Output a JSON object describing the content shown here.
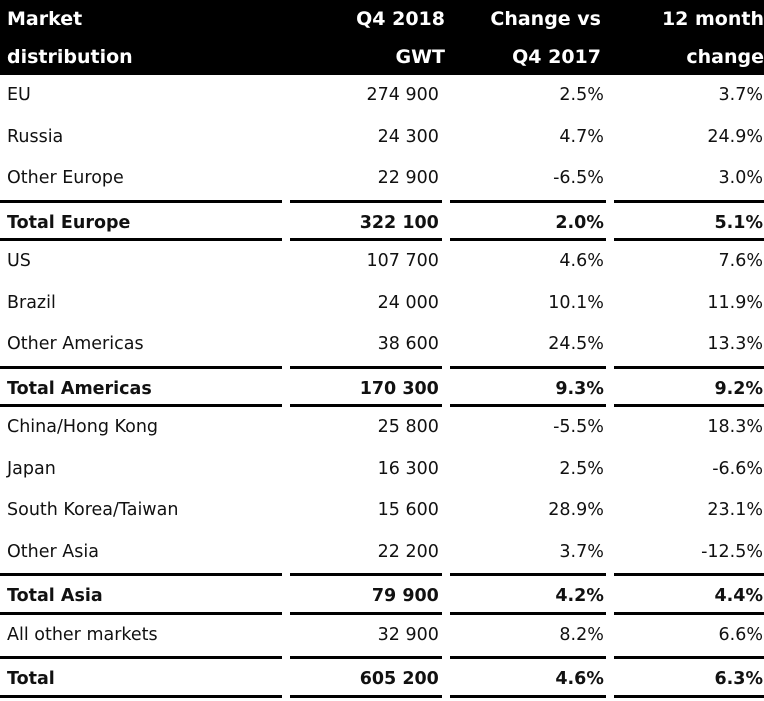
{
  "header": {
    "col1_line1": "Market",
    "col1_line2": "distribution",
    "col2_line1": "Q4 2018",
    "col2_line2": "GWT",
    "col3_line1": "Change vs",
    "col3_line2": "Q4 2017",
    "col4_line1": "12 month",
    "col4_line2": "change"
  },
  "rows": [
    {
      "market": "EU",
      "q4_2018": "274 900",
      "change_vs_q4_2017": "2.5%",
      "change_12m": "3.7%",
      "total": false
    },
    {
      "market": "Russia",
      "q4_2018": "24 300",
      "change_vs_q4_2017": "4.7%",
      "change_12m": "24.9%",
      "total": false
    },
    {
      "market": "Other Europe",
      "q4_2018": "22 900",
      "change_vs_q4_2017": "-6.5%",
      "change_12m": "3.0%",
      "total": false
    },
    {
      "market": "Total Europe",
      "q4_2018": "322 100",
      "change_vs_q4_2017": "2.0%",
      "change_12m": "5.1%",
      "total": true
    },
    {
      "market": "US",
      "q4_2018": "107 700",
      "change_vs_q4_2017": "4.6%",
      "change_12m": "7.6%",
      "total": false
    },
    {
      "market": "Brazil",
      "q4_2018": "24 000",
      "change_vs_q4_2017": "10.1%",
      "change_12m": "11.9%",
      "total": false
    },
    {
      "market": "Other Americas",
      "q4_2018": "38 600",
      "change_vs_q4_2017": "24.5%",
      "change_12m": "13.3%",
      "total": false
    },
    {
      "market": "Total Americas",
      "q4_2018": "170 300",
      "change_vs_q4_2017": "9.3%",
      "change_12m": "9.2%",
      "total": true
    },
    {
      "market": "China/Hong Kong",
      "q4_2018": "25 800",
      "change_vs_q4_2017": "-5.5%",
      "change_12m": "18.3%",
      "total": false
    },
    {
      "market": "Japan",
      "q4_2018": "16 300",
      "change_vs_q4_2017": "2.5%",
      "change_12m": "-6.6%",
      "total": false
    },
    {
      "market": "South Korea/Taiwan",
      "q4_2018": "15 600",
      "change_vs_q4_2017": "28.9%",
      "change_12m": "23.1%",
      "total": false
    },
    {
      "market": "Other Asia",
      "q4_2018": "22 200",
      "change_vs_q4_2017": "3.7%",
      "change_12m": "-12.5%",
      "total": false
    },
    {
      "market": "Total Asia",
      "q4_2018": "79 900",
      "change_vs_q4_2017": "4.2%",
      "change_12m": "4.4%",
      "total": true
    },
    {
      "market": "All other markets",
      "q4_2018": "32 900",
      "change_vs_q4_2017": "8.2%",
      "change_12m": "6.6%",
      "total": false
    },
    {
      "market": "Total",
      "q4_2018": "605 200",
      "change_vs_q4_2017": "4.6%",
      "change_12m": "6.3%",
      "total": true
    }
  ]
}
